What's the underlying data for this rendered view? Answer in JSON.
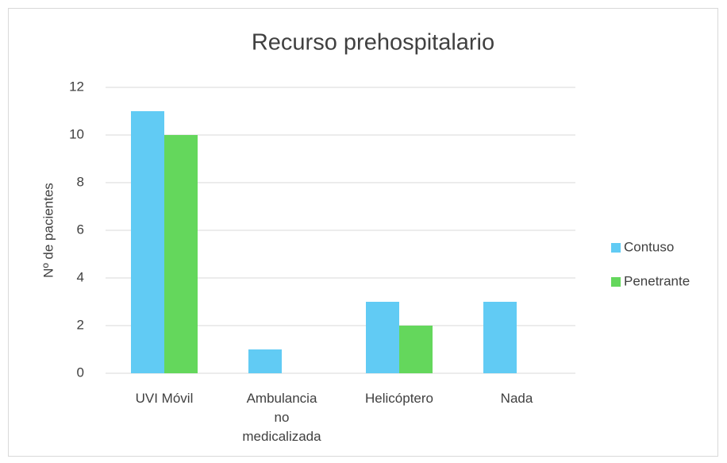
{
  "chart_data": {
    "type": "bar",
    "title": "Recurso prehospitalario",
    "y_label": "Nº de pacientes",
    "categories": [
      "UVI Móvil",
      "Ambulancia no medicalizada",
      "Helicóptero",
      "Nada"
    ],
    "series": [
      {
        "name": "Contuso",
        "color": "#61cbf4",
        "values": [
          11,
          1,
          3,
          3
        ]
      },
      {
        "name": "Penetrante",
        "color": "#64d75c",
        "values": [
          10,
          0,
          2,
          0
        ]
      }
    ],
    "ylim": [
      0,
      12
    ],
    "yticks": [
      0,
      2,
      4,
      6,
      8,
      10,
      12
    ],
    "grid": true,
    "legend": "right"
  }
}
